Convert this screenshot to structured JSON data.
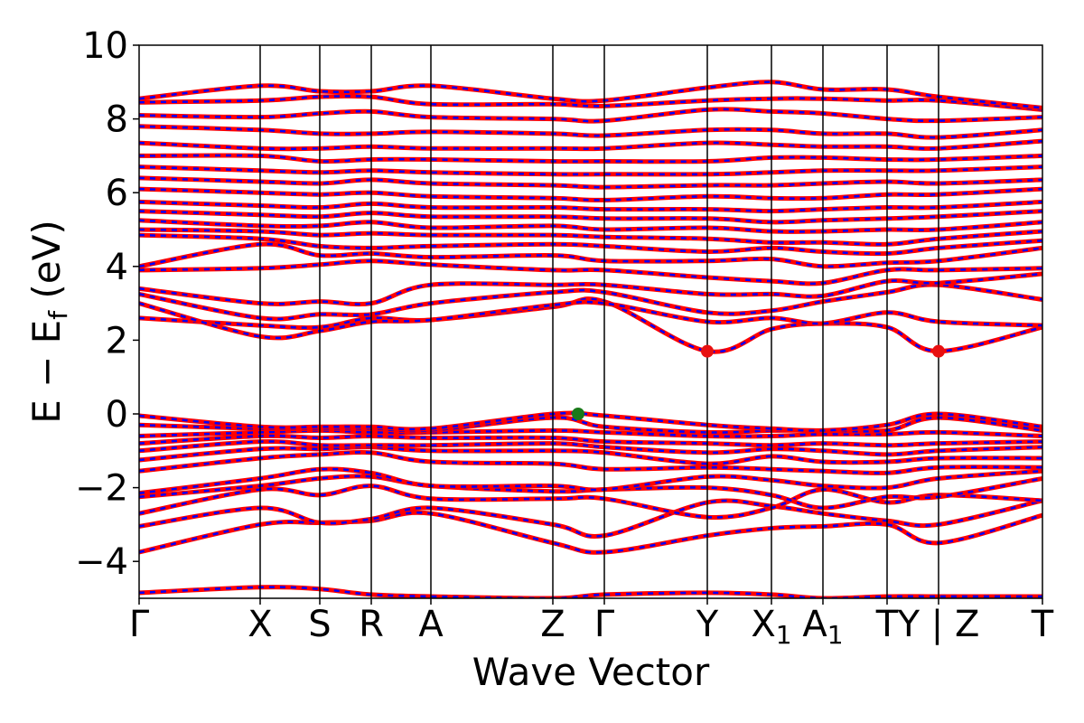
{
  "chart_data": {
    "type": "line",
    "title": "",
    "xlabel": "Wave Vector",
    "ylabel": {
      "main": "E − E",
      "sub": "f",
      "unit": " (eV)"
    },
    "ylim": [
      -5,
      10
    ],
    "y_ticks": [
      {
        "value": 10,
        "label": "10"
      },
      {
        "value": 8,
        "label": "8"
      },
      {
        "value": 6,
        "label": "6"
      },
      {
        "value": 4,
        "label": "4"
      },
      {
        "value": 2,
        "label": "2"
      },
      {
        "value": 0,
        "label": "0"
      },
      {
        "value": -2,
        "label": "−2"
      },
      {
        "value": -4,
        "label": "−4"
      }
    ],
    "k_points": [
      {
        "label": "Γ",
        "sub": "",
        "x": 0.0
      },
      {
        "label": "X",
        "sub": "",
        "x": 0.134
      },
      {
        "label": "S",
        "sub": "",
        "x": 0.2
      },
      {
        "label": "R",
        "sub": "",
        "x": 0.257
      },
      {
        "label": "A",
        "sub": "",
        "x": 0.323
      },
      {
        "label": "Z",
        "sub": "",
        "x": 0.458
      },
      {
        "label": "Γ",
        "sub": "",
        "x": 0.515
      },
      {
        "label": "Y",
        "sub": "",
        "x": 0.629
      },
      {
        "label": "X",
        "sub": "1",
        "x": 0.7
      },
      {
        "label": "A",
        "sub": "1",
        "x": 0.757
      },
      {
        "label": "T",
        "sub": "",
        "x": 0.828
      },
      {
        "label": "Y | Z",
        "sub": "",
        "x": 0.885
      },
      {
        "label": "T",
        "sub": "",
        "x": 1.0
      }
    ],
    "xlim": [
      0,
      1
    ],
    "vbm": {
      "x": 0.486,
      "y": 0.0,
      "color": "#1a7a1a"
    },
    "cbm": [
      {
        "x": 0.629,
        "y": 1.7,
        "color": "#e81010"
      },
      {
        "x": 0.885,
        "y": 1.7,
        "color": "#e81010"
      }
    ],
    "series": [
      {
        "color": "#ff0000",
        "style": "solid"
      },
      {
        "color": "#0000ff",
        "style": "dashed"
      }
    ],
    "bands": [
      {
        "y": [
          -4.85,
          -4.7,
          -4.75,
          -4.9,
          -4.95,
          -5.0,
          -4.9,
          -4.85,
          -4.9,
          -5.0,
          -4.95,
          -4.95,
          -4.95
        ]
      },
      {
        "y": [
          -3.75,
          -3.0,
          -2.95,
          -2.9,
          -2.7,
          -3.5,
          -3.75,
          -3.3,
          -3.1,
          -3.05,
          -3.0,
          -3.5,
          -2.75
        ]
      },
      {
        "y": [
          -3.05,
          -2.55,
          -2.95,
          -2.85,
          -2.55,
          -3.0,
          -3.3,
          -2.4,
          -2.5,
          -2.7,
          -2.9,
          -3.0,
          -2.35
        ]
      },
      {
        "y": [
          -2.7,
          -2.05,
          -2.2,
          -1.95,
          -2.3,
          -2.3,
          -2.3,
          -2.8,
          -2.55,
          -2.05,
          -2.4,
          -2.2,
          -2.35
        ]
      },
      {
        "y": [
          -2.25,
          -1.95,
          -1.75,
          -1.7,
          -1.95,
          -2.1,
          -2.05,
          -2.0,
          -2.2,
          -2.55,
          -2.25,
          -2.25,
          -1.75
        ]
      },
      {
        "y": [
          -2.15,
          -1.75,
          -1.5,
          -1.6,
          -1.95,
          -1.95,
          -2.05,
          -1.7,
          -1.8,
          -1.95,
          -2.0,
          -1.75,
          -1.55
        ]
      },
      {
        "y": [
          -1.55,
          -1.2,
          -1.1,
          -1.05,
          -1.3,
          -1.35,
          -1.5,
          -1.45,
          -1.5,
          -1.55,
          -1.6,
          -1.45,
          -1.45
        ]
      },
      {
        "y": [
          -1.25,
          -0.95,
          -0.95,
          -0.9,
          -1.0,
          -1.0,
          -1.05,
          -1.35,
          -1.15,
          -1.3,
          -1.3,
          -1.2,
          -1.2
        ]
      },
      {
        "y": [
          -1.0,
          -0.75,
          -0.85,
          -0.85,
          -0.85,
          -0.8,
          -0.9,
          -1.05,
          -0.95,
          -1.0,
          -1.1,
          -1.0,
          -0.9
        ]
      },
      {
        "y": [
          -0.8,
          -0.6,
          -0.65,
          -0.6,
          -0.65,
          -0.65,
          -0.75,
          -0.8,
          -0.85,
          -0.8,
          -0.85,
          -0.8,
          -0.75
        ]
      },
      {
        "y": [
          -0.6,
          -0.5,
          -0.45,
          -0.5,
          -0.5,
          -0.45,
          -0.5,
          -0.6,
          -0.6,
          -0.55,
          -0.55,
          -0.5,
          -0.6
        ]
      },
      {
        "y": [
          -0.3,
          -0.4,
          -0.4,
          -0.4,
          -0.45,
          -0.1,
          -0.35,
          -0.5,
          -0.45,
          -0.45,
          -0.45,
          -0.1,
          -0.45
        ]
      },
      {
        "y": [
          -0.05,
          -0.35,
          -0.35,
          -0.35,
          -0.4,
          0.0,
          -0.05,
          -0.3,
          -0.4,
          -0.45,
          -0.3,
          0.0,
          -0.35
        ]
      },
      {
        "y": [
          2.6,
          2.4,
          2.35,
          2.6,
          2.55,
          2.9,
          3.05,
          1.7,
          2.3,
          2.45,
          2.35,
          1.7,
          2.35
        ]
      },
      {
        "y": [
          3.0,
          2.1,
          2.25,
          2.5,
          2.55,
          2.95,
          3.0,
          2.5,
          2.6,
          2.45,
          2.75,
          2.5,
          2.4
        ]
      },
      {
        "y": [
          3.25,
          2.6,
          2.7,
          2.7,
          3.0,
          3.3,
          3.3,
          2.75,
          2.8,
          3.05,
          3.3,
          3.5,
          3.1
        ]
      },
      {
        "y": [
          3.4,
          3.0,
          3.05,
          3.0,
          3.5,
          3.5,
          3.5,
          3.25,
          3.25,
          3.2,
          3.6,
          3.55,
          3.8
        ]
      },
      {
        "y": [
          3.9,
          3.95,
          4.05,
          4.15,
          4.05,
          3.9,
          3.9,
          3.7,
          3.6,
          3.55,
          3.9,
          3.9,
          3.95
        ]
      },
      {
        "y": [
          4.0,
          4.6,
          4.3,
          4.35,
          4.25,
          4.3,
          4.15,
          4.15,
          4.2,
          4.0,
          4.1,
          4.15,
          4.5
        ]
      },
      {
        "y": [
          4.85,
          4.75,
          4.55,
          4.5,
          4.55,
          4.6,
          4.55,
          4.4,
          4.5,
          4.4,
          4.35,
          4.5,
          4.7
        ]
      },
      {
        "y": [
          5.0,
          4.95,
          4.85,
          4.9,
          4.85,
          4.85,
          4.8,
          4.75,
          4.65,
          4.65,
          4.6,
          4.75,
          4.95
        ]
      },
      {
        "y": [
          5.25,
          5.1,
          5.1,
          5.2,
          5.05,
          5.1,
          5.0,
          5.05,
          4.95,
          4.95,
          5.0,
          5.0,
          5.2
        ]
      },
      {
        "y": [
          5.5,
          5.4,
          5.35,
          5.45,
          5.35,
          5.35,
          5.3,
          5.3,
          5.2,
          5.25,
          5.3,
          5.35,
          5.5
        ]
      },
      {
        "y": [
          5.75,
          5.65,
          5.6,
          5.7,
          5.6,
          5.6,
          5.55,
          5.55,
          5.5,
          5.55,
          5.6,
          5.6,
          5.75
        ]
      },
      {
        "y": [
          6.1,
          6.0,
          5.95,
          6.0,
          5.9,
          5.85,
          5.8,
          5.9,
          5.85,
          5.85,
          5.95,
          5.95,
          6.1
        ]
      },
      {
        "y": [
          6.4,
          6.3,
          6.25,
          6.35,
          6.25,
          6.2,
          6.15,
          6.2,
          6.2,
          6.25,
          6.3,
          6.25,
          6.35
        ]
      },
      {
        "y": [
          6.7,
          6.6,
          6.55,
          6.6,
          6.55,
          6.5,
          6.5,
          6.5,
          6.55,
          6.6,
          6.6,
          6.6,
          6.7
        ]
      },
      {
        "y": [
          7.0,
          7.0,
          6.85,
          6.9,
          6.9,
          6.85,
          6.85,
          6.85,
          6.95,
          6.95,
          6.9,
          6.9,
          7.0
        ]
      },
      {
        "y": [
          7.35,
          7.2,
          7.2,
          7.25,
          7.2,
          7.2,
          7.2,
          7.35,
          7.3,
          7.25,
          7.25,
          7.2,
          7.4
        ]
      },
      {
        "y": [
          7.8,
          7.7,
          7.6,
          7.6,
          7.65,
          7.6,
          7.55,
          7.7,
          7.7,
          7.6,
          7.6,
          7.5,
          7.7
        ]
      },
      {
        "y": [
          8.1,
          8.05,
          8.15,
          8.2,
          8.05,
          8.0,
          7.95,
          8.25,
          8.2,
          8.15,
          8.0,
          7.95,
          8.05
        ]
      },
      {
        "y": [
          8.45,
          8.5,
          8.6,
          8.6,
          8.4,
          8.4,
          8.35,
          8.5,
          8.55,
          8.55,
          8.5,
          8.5,
          8.25
        ]
      },
      {
        "y": [
          8.55,
          8.9,
          8.75,
          8.75,
          8.9,
          8.55,
          8.5,
          8.85,
          9.0,
          8.8,
          8.8,
          8.6,
          8.3
        ]
      }
    ]
  }
}
